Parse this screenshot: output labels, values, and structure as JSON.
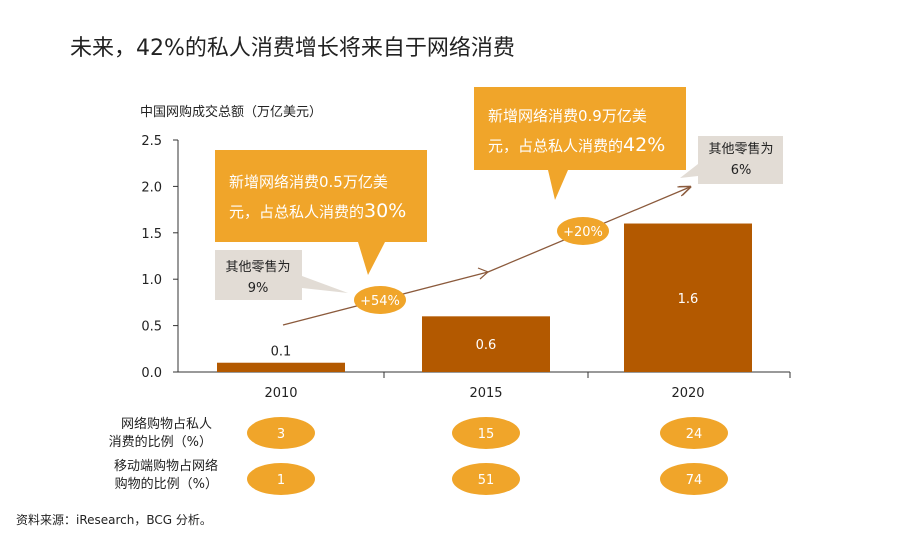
{
  "title": "未来，42%的私人消费增长将来自于网络消费",
  "source": "资料来源：iResearch，BCG 分析。",
  "colors": {
    "bar": "#B35900",
    "oval": "#F0A52A",
    "callout_orange": "#F0A52A",
    "callout_gray": "#E2DCD5",
    "axis": "#333333",
    "arrow": "#8B5A3C"
  },
  "chart_data": {
    "type": "bar",
    "ylabel": "中国网购成交总额（万亿美元）",
    "ylim": [
      0,
      2.5
    ],
    "yticks": [
      "0.0",
      "0.5",
      "1.0",
      "1.5",
      "2.0",
      "2.5"
    ],
    "ytick_values": [
      0,
      0.5,
      1.0,
      1.5,
      2.0,
      2.5
    ],
    "categories": [
      "2010",
      "2015",
      "2020"
    ],
    "values": [
      0.1,
      0.6,
      1.6
    ],
    "value_labels": [
      "0.1",
      "0.6",
      "1.6"
    ],
    "growth_labels": [
      "+54%",
      "+20%"
    ],
    "callouts_online": [
      {
        "line1": "新增网络消费0.5万亿美",
        "line2a": "元，占总私人消费的",
        "line2b": "30%"
      },
      {
        "line1": "新增网络消费0.9万亿美",
        "line2a": "元，占总私人消费的",
        "line2b": "42%"
      }
    ],
    "callouts_other": [
      {
        "line1": "其他零售为",
        "line2": "9%"
      },
      {
        "line1": "其他零售为",
        "line2": "6%"
      }
    ],
    "row_labels": [
      {
        "line1": "网络购物占私人",
        "line2": "消费的比例（%）"
      },
      {
        "line1": "移动端购物占网络",
        "line2": "购物的比例（%）"
      }
    ],
    "row_values": [
      [
        "3",
        "15",
        "24"
      ],
      [
        "1",
        "51",
        "74"
      ]
    ]
  }
}
